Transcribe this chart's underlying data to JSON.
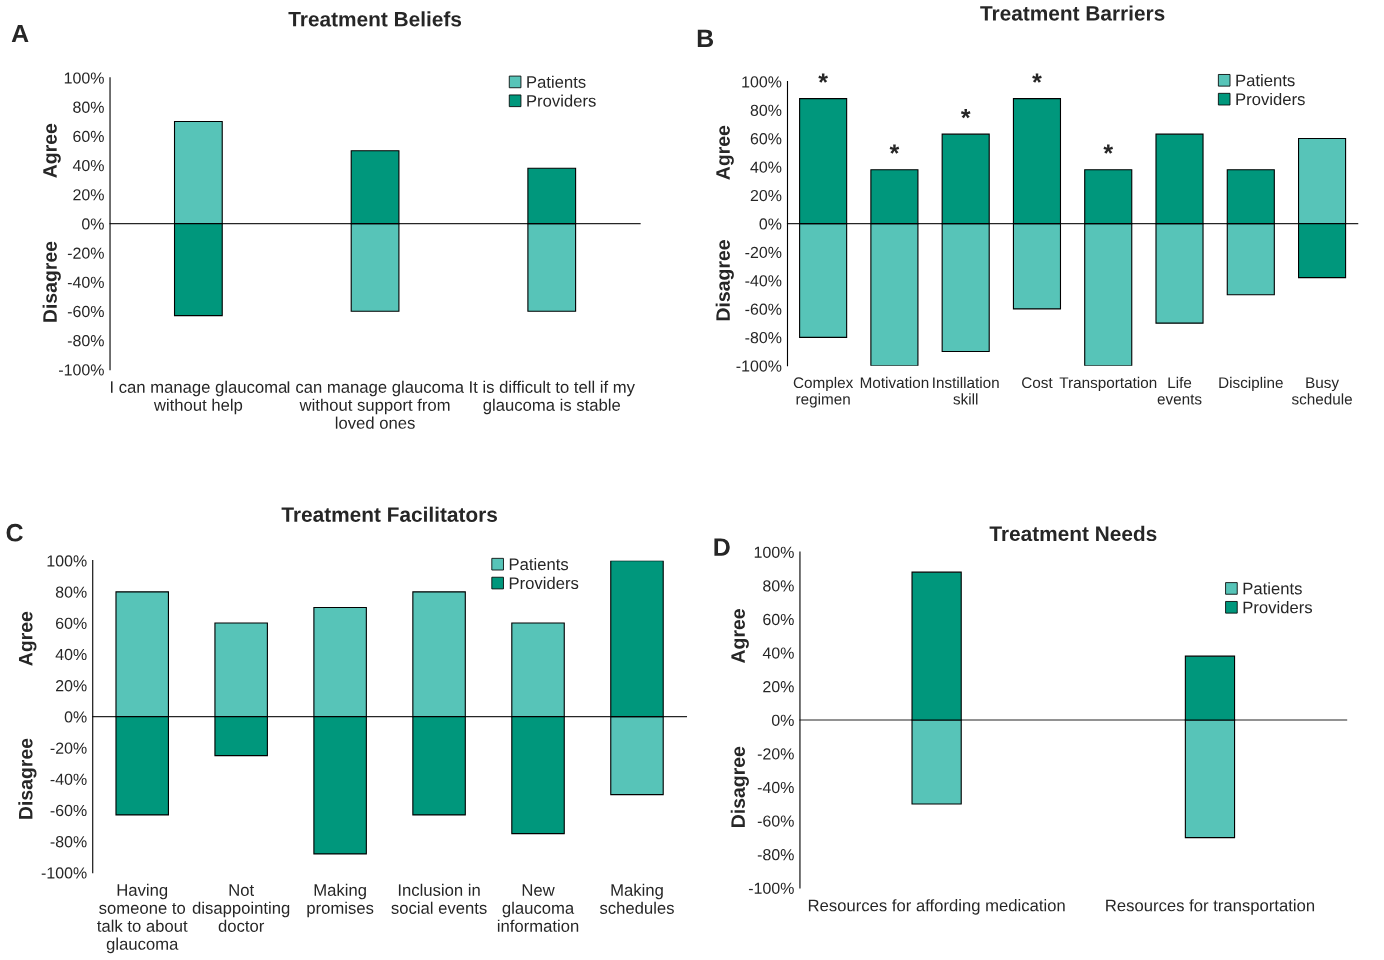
{
  "chart_data": [
    {
      "type": "bar",
      "stacked": true,
      "title": "Treatment Beliefs",
      "ylabel": "Agree",
      "annotations": [
        "A",
        "Disagree"
      ],
      "categories": [
        "I can manage glaucoma\nwithout help",
        "I can manage glaucoma\nwithout support from\nloved ones",
        "It is difficult to tell if my\nglaucoma is stable"
      ],
      "series": [
        {
          "name": "Patients",
          "color": "#57c4b8",
          "values": [
            70,
            -60,
            -60
          ]
        },
        {
          "name": "Providers",
          "color": "#00977c",
          "values": [
            -63,
            50,
            38
          ]
        }
      ],
      "ylim": [
        -100,
        100
      ],
      "yticks": [
        {
          "value": -100,
          "label": "-100%"
        },
        {
          "value": -80,
          "label": "-80%"
        },
        {
          "value": -60,
          "label": "-60%"
        },
        {
          "value": -40,
          "label": "-40%"
        },
        {
          "value": -20,
          "label": "-20%"
        },
        {
          "value": 0,
          "label": "0%"
        },
        {
          "value": 20,
          "label": "20%"
        },
        {
          "value": 40,
          "label": "40%"
        },
        {
          "value": 60,
          "label": "60%"
        },
        {
          "value": 80,
          "label": "80%"
        },
        {
          "value": 100,
          "label": "100%"
        }
      ],
      "legend": "top right"
    },
    {
      "type": "bar",
      "stacked": true,
      "title": "Treatment Barriers",
      "ylabel": "Agree",
      "annotations": [
        "B",
        "Disagree",
        {
          "text": "*",
          "x": "Complex\nregimen",
          "y": 88
        },
        {
          "text": "*",
          "x": "Motivation",
          "y": 38
        },
        {
          "text": "*",
          "x": "Instillation\nskill",
          "y": 63
        },
        {
          "text": "*",
          "x": "Cost",
          "y": 88
        },
        {
          "text": "*",
          "x": "Transportation",
          "y": 38
        }
      ],
      "categories": [
        "Complex\nregimen",
        "Motivation",
        "Instillation\nskill",
        "Cost",
        "Transportation",
        "Life\nevents",
        "Discipline",
        "Busy\nschedule"
      ],
      "series": [
        {
          "name": "Patients",
          "color": "#57c4b8",
          "values": [
            -80,
            -100,
            -90,
            -60,
            -100,
            -70,
            -50,
            60
          ]
        },
        {
          "name": "Providers",
          "color": "#00977c",
          "values": [
            88,
            38,
            63,
            88,
            38,
            63,
            38,
            -38
          ]
        }
      ],
      "ylim": [
        -100,
        100
      ],
      "yticks": [
        {
          "value": -100,
          "label": "-100%"
        },
        {
          "value": -80,
          "label": "-80%"
        },
        {
          "value": -60,
          "label": "-60%"
        },
        {
          "value": -40,
          "label": "-40%"
        },
        {
          "value": -20,
          "label": "-20%"
        },
        {
          "value": 0,
          "label": "0%"
        },
        {
          "value": 20,
          "label": "20%"
        },
        {
          "value": 40,
          "label": "40%"
        },
        {
          "value": 60,
          "label": "60%"
        },
        {
          "value": 80,
          "label": "80%"
        },
        {
          "value": 100,
          "label": "100%"
        }
      ],
      "legend": "top right"
    },
    {
      "type": "bar",
      "stacked": true,
      "title": "Treatment Facilitators",
      "ylabel": "Agree",
      "annotations": [
        "C",
        "Disagree"
      ],
      "categories": [
        "Having\nsomeone to\ntalk to about\nglaucoma",
        "Not\ndisappointing\ndoctor",
        "Making\npromises",
        "Inclusion in\nsocial events",
        "New\nglaucoma\ninformation",
        "Making\nschedules"
      ],
      "series": [
        {
          "name": "Patients",
          "color": "#57c4b8",
          "values": [
            80,
            60,
            70,
            80,
            60,
            -50
          ]
        },
        {
          "name": "Providers",
          "color": "#00977c",
          "values": [
            -63,
            -25,
            -88,
            -63,
            -75,
            100
          ]
        }
      ],
      "ylim": [
        -100,
        100
      ],
      "yticks": [
        {
          "value": -100,
          "label": "-100%"
        },
        {
          "value": -80,
          "label": "-80%"
        },
        {
          "value": -60,
          "label": "-60%"
        },
        {
          "value": -40,
          "label": "-40%"
        },
        {
          "value": -20,
          "label": "-20%"
        },
        {
          "value": 0,
          "label": "0%"
        },
        {
          "value": 20,
          "label": "20%"
        },
        {
          "value": 40,
          "label": "40%"
        },
        {
          "value": 60,
          "label": "60%"
        },
        {
          "value": 80,
          "label": "80%"
        },
        {
          "value": 100,
          "label": "100%"
        }
      ],
      "legend": "top right"
    },
    {
      "type": "bar",
      "stacked": true,
      "title": "Treatment Needs",
      "ylabel": "Agree",
      "annotations": [
        "D",
        "Disagree"
      ],
      "categories": [
        "Resources for affording medication",
        "Resources for transportation"
      ],
      "series": [
        {
          "name": "Patients",
          "color": "#57c4b8",
          "values": [
            -50,
            -70
          ]
        },
        {
          "name": "Providers",
          "color": "#00977c",
          "values": [
            88,
            38
          ]
        }
      ],
      "ylim": [
        -100,
        100
      ],
      "yticks": [
        {
          "value": -100,
          "label": "-100%"
        },
        {
          "value": -80,
          "label": "-80%"
        },
        {
          "value": -60,
          "label": "-60%"
        },
        {
          "value": -40,
          "label": "-40%"
        },
        {
          "value": -20,
          "label": "-20%"
        },
        {
          "value": 0,
          "label": "0%"
        },
        {
          "value": 20,
          "label": "20%"
        },
        {
          "value": 40,
          "label": "40%"
        },
        {
          "value": 60,
          "label": "60%"
        },
        {
          "value": 80,
          "label": "80%"
        },
        {
          "value": 100,
          "label": "100%"
        }
      ],
      "legend": "top right"
    }
  ]
}
